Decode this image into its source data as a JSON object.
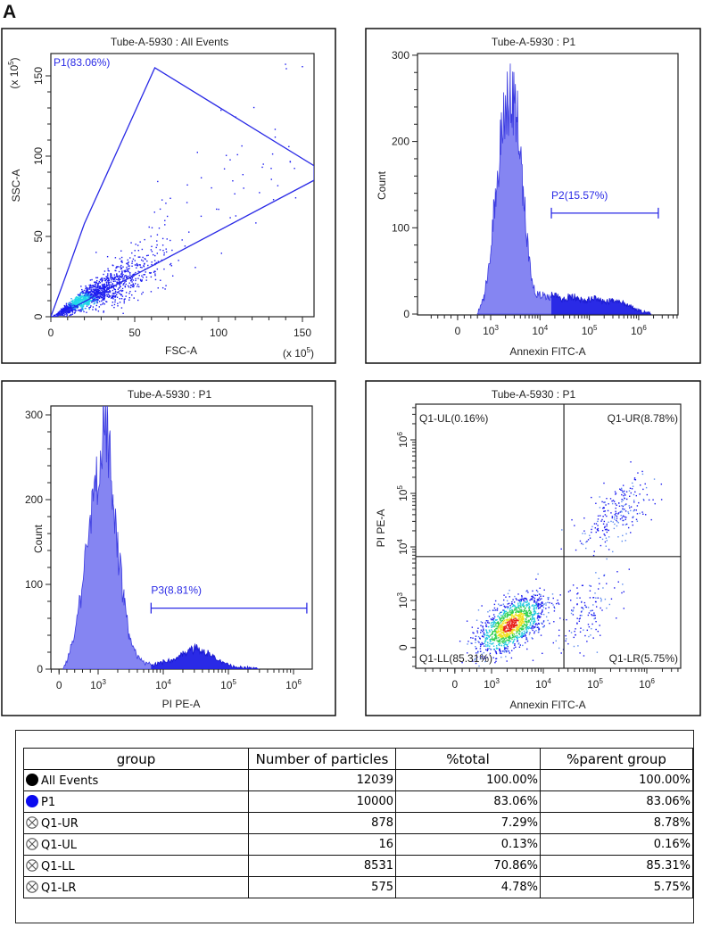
{
  "figure_label": "A",
  "chart_data": [
    {
      "type": "scatter",
      "title": "Tube-A-5930 : All Events",
      "xlabel": "FSC-A",
      "ylabel": "SSC-A",
      "x_multiplier": "(x 10^5)",
      "y_multiplier": "(x 10^5)",
      "xlim": [
        0,
        157
      ],
      "ylim": [
        0,
        164
      ],
      "xticks": [
        {
          "v": 0,
          "label": "0"
        },
        {
          "v": 50,
          "label": "50"
        },
        {
          "v": 100,
          "label": "100"
        },
        {
          "v": 150,
          "label": "150"
        }
      ],
      "yticks": [
        {
          "v": 0,
          "label": "0"
        },
        {
          "v": 50,
          "label": "50"
        },
        {
          "v": 100,
          "label": "100"
        },
        {
          "v": 150,
          "label": "150"
        }
      ],
      "gate": {
        "label": "P1(83.06%)",
        "polygon": [
          [
            0,
            0
          ],
          [
            7,
            20
          ],
          [
            20,
            58
          ],
          [
            62,
            155
          ],
          [
            157,
            94
          ],
          [
            157,
            85
          ],
          [
            3,
            0
          ]
        ]
      },
      "population": {
        "center": [
          25,
          14
        ],
        "ssc_fsc_ratio": 0.55,
        "n": 1500,
        "outliers": 70
      },
      "color": "#2a2ae6"
    },
    {
      "type": "histogram",
      "title": "Tube-A-5930 : P1",
      "xlabel": "Annexin FITC-A",
      "ylabel": "Count",
      "ylim": [
        0,
        302
      ],
      "xticks": [
        {
          "v": 0,
          "label": "0"
        },
        {
          "v": 1000,
          "label": "10^3"
        },
        {
          "v": 10000,
          "label": "10^4"
        },
        {
          "v": 100000,
          "label": "10^5"
        },
        {
          "v": 1000000,
          "label": "10^6"
        }
      ],
      "yticks": [
        {
          "v": 0,
          "label": "0"
        },
        {
          "v": 100,
          "label": "100"
        },
        {
          "v": 200,
          "label": "200"
        },
        {
          "v": 300,
          "label": "300"
        }
      ],
      "bins": [
        [
          600,
          0
        ],
        [
          800,
          20
        ],
        [
          1000,
          70
        ],
        [
          1300,
          150
        ],
        [
          1600,
          200
        ],
        [
          2000,
          235
        ],
        [
          2500,
          255
        ],
        [
          3000,
          245
        ],
        [
          3500,
          225
        ],
        [
          4000,
          180
        ],
        [
          5000,
          120
        ],
        [
          6000,
          60
        ],
        [
          7000,
          35
        ],
        [
          8000,
          25
        ],
        [
          10000,
          22
        ],
        [
          15000,
          20
        ],
        [
          20000,
          22
        ],
        [
          30000,
          18
        ],
        [
          50000,
          20
        ],
        [
          80000,
          15
        ],
        [
          120000,
          18
        ],
        [
          200000,
          14
        ],
        [
          300000,
          16
        ],
        [
          500000,
          12
        ],
        [
          800000,
          6
        ],
        [
          1200000,
          2
        ],
        [
          1800000,
          0
        ]
      ],
      "gate": {
        "label": "P2(15.57%)",
        "range": [
          17000,
          2500000
        ],
        "level": 117
      },
      "fill": "#8585f2",
      "gate_fill": "#2a2ae6"
    },
    {
      "type": "histogram",
      "title": "Tube-A-5930 : P1",
      "xlabel": "PI PE-A",
      "ylabel": "Count",
      "ylim": [
        0,
        310
      ],
      "xticks": [
        {
          "v": 0,
          "label": "0"
        },
        {
          "v": 1000,
          "label": "10^3"
        },
        {
          "v": 10000,
          "label": "10^4"
        },
        {
          "v": 100000,
          "label": "10^5"
        },
        {
          "v": 1000000,
          "label": "10^6"
        }
      ],
      "yticks": [
        {
          "v": 0,
          "label": "0"
        },
        {
          "v": 100,
          "label": "100"
        },
        {
          "v": 200,
          "label": "200"
        },
        {
          "v": 300,
          "label": "300"
        }
      ],
      "bins": [
        [
          100,
          0
        ],
        [
          200,
          10
        ],
        [
          400,
          40
        ],
        [
          600,
          100
        ],
        [
          800,
          170
        ],
        [
          1000,
          230
        ],
        [
          1200,
          285
        ],
        [
          1400,
          270
        ],
        [
          1700,
          200
        ],
        [
          2000,
          140
        ],
        [
          2500,
          80
        ],
        [
          3000,
          40
        ],
        [
          4000,
          15
        ],
        [
          5000,
          8
        ],
        [
          7000,
          5
        ],
        [
          10000,
          8
        ],
        [
          15000,
          12
        ],
        [
          20000,
          18
        ],
        [
          30000,
          24
        ],
        [
          40000,
          22
        ],
        [
          60000,
          15
        ],
        [
          80000,
          8
        ],
        [
          120000,
          3
        ],
        [
          200000,
          1
        ],
        [
          300000,
          0
        ]
      ],
      "gate": {
        "label": "P3(8.81%)",
        "range": [
          6500,
          1600000
        ],
        "level": 72
      },
      "fill": "#8585f2",
      "gate_fill": "#2a2ae6"
    },
    {
      "type": "scatter",
      "title": "Tube-A-5930 : P1",
      "xlabel": "Annexin FITC-A",
      "ylabel": "PI PE-A",
      "xticks": [
        {
          "v": 0,
          "label": "0"
        },
        {
          "v": 1000,
          "label": "10^3"
        },
        {
          "v": 10000,
          "label": "10^4"
        },
        {
          "v": 100000,
          "label": "10^5"
        },
        {
          "v": 1000000,
          "label": "10^6"
        }
      ],
      "yticks": [
        {
          "v": 0,
          "label": "0"
        },
        {
          "v": 1000,
          "label": "10^3"
        },
        {
          "v": 10000,
          "label": "10^4"
        },
        {
          "v": 100000,
          "label": "10^5"
        },
        {
          "v": 1000000,
          "label": "10^6"
        }
      ],
      "quadrant_threshold": {
        "x": 25000,
        "y": 6600
      },
      "quadrants": {
        "UL": "Q1-UL(0.16%)",
        "UR": "Q1-UR(8.78%)",
        "LL": "Q1-LL(85.31%)",
        "LR": "Q1-LR(5.75%)"
      },
      "populations": [
        {
          "name": "LL",
          "center": [
            2300,
            490
          ],
          "spread_decades": [
            0.33,
            0.28
          ],
          "n": 1300
        },
        {
          "name": "LR",
          "center": [
            60000,
            700
          ],
          "spread_decades": [
            0.35,
            0.35
          ],
          "n": 140
        },
        {
          "name": "UR",
          "center": [
            250000,
            40000
          ],
          "spread_decades": [
            0.33,
            0.33
          ],
          "n": 230
        }
      ]
    }
  ],
  "table": {
    "headers": [
      "group",
      "Number of particles",
      "%total",
      "%parent group"
    ],
    "rows": [
      {
        "icon": "filled-circle-black",
        "color": "#000000",
        "group": "All Events",
        "count": "12039",
        "total": "100.00%",
        "parent": "100.00%"
      },
      {
        "icon": "filled-circle-blue",
        "color": "#0a0af0",
        "group": "P1",
        "count": "10000",
        "total": "83.06%",
        "parent": "83.06%"
      },
      {
        "icon": "circled-x",
        "group": "Q1-UR",
        "count": "878",
        "total": "7.29%",
        "parent": "8.78%"
      },
      {
        "icon": "circled-x",
        "group": "Q1-UL",
        "count": "16",
        "total": "0.13%",
        "parent": "0.16%"
      },
      {
        "icon": "circled-x",
        "group": "Q1-LL",
        "count": "8531",
        "total": "70.86%",
        "parent": "85.31%"
      },
      {
        "icon": "circled-x",
        "group": "Q1-LR",
        "count": "575",
        "total": "4.78%",
        "parent": "5.75%"
      }
    ]
  }
}
